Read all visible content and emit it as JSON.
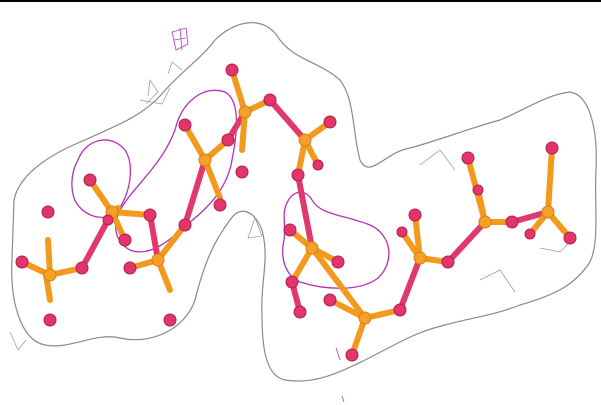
{
  "image": {
    "subject": "",
    "colors": {
      "background": "#ffffff",
      "grey_mesh": "#9a9a9a",
      "magenta_mesh": "#c23cc8",
      "phosphorus_atom": "#f6a02a",
      "oxygen_atom": "#e2356a"
    }
  }
}
